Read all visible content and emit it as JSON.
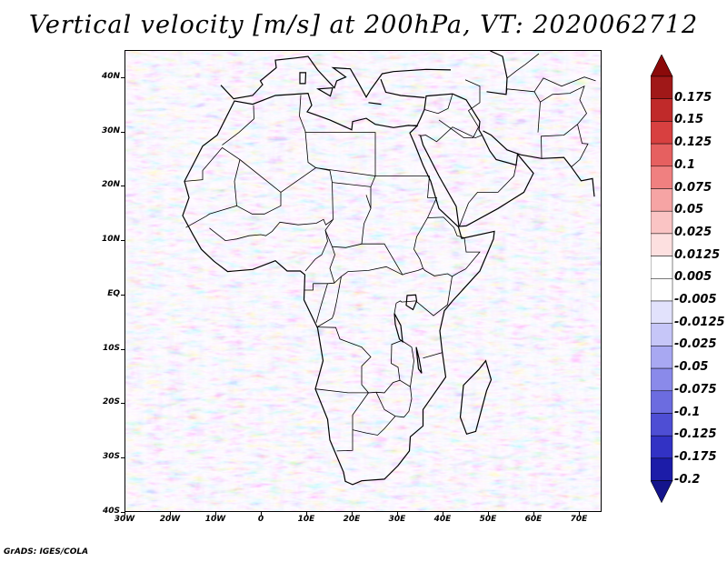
{
  "title": "Vertical velocity [m/s] at 200hPa, VT: 2020062712",
  "footer": "GrADS: IGES/COLA",
  "map": {
    "lat_labels": [
      "40N",
      "30N",
      "20N",
      "10N",
      "EQ",
      "10S",
      "20S",
      "30S",
      "40S"
    ],
    "lon_labels": [
      "30W",
      "20W",
      "10W",
      "0",
      "10E",
      "20E",
      "30E",
      "40E",
      "50E",
      "60E",
      "70E"
    ],
    "lon_range": [
      -30,
      75
    ],
    "lat_range": [
      -40,
      45
    ]
  },
  "colorbar": {
    "labels": [
      "0.175",
      "0.15",
      "0.125",
      "0.1",
      "0.075",
      "0.05",
      "0.025",
      "0.0125",
      "0.005",
      "-0.005",
      "-0.0125",
      "-0.025",
      "-0.05",
      "-0.075",
      "-0.1",
      "-0.125",
      "-0.175",
      "-0.2"
    ],
    "colors": [
      "#a01818",
      "#c02a2a",
      "#d84040",
      "#e66060",
      "#f08080",
      "#f6a4a4",
      "#fac4c4",
      "#fde0e0",
      "#ffffff",
      "#ffffff",
      "#e2e2fc",
      "#c6c6f8",
      "#a8a8f2",
      "#8a8aea",
      "#6c6ce0",
      "#4e4ed4",
      "#3232c4",
      "#1c1ca8"
    ],
    "max_color": "#8b0a0a",
    "min_color": "#14148c"
  }
}
